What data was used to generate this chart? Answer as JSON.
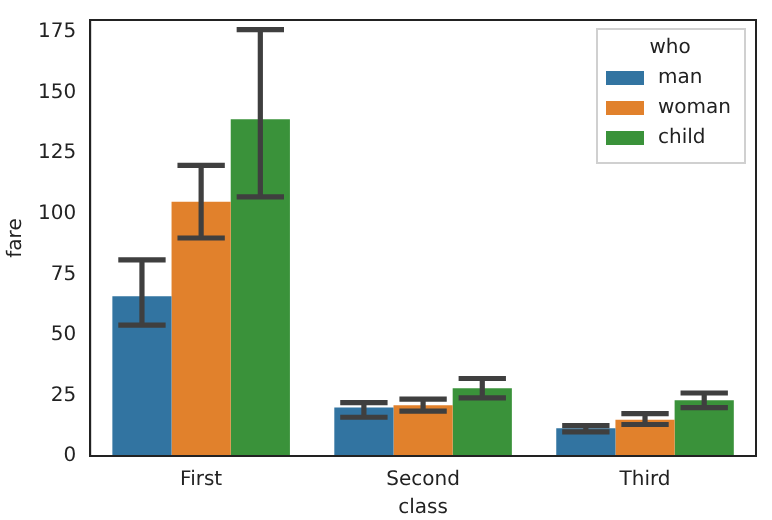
{
  "chart_data": {
    "type": "bar",
    "xlabel": "class",
    "ylabel": "fare",
    "legend_title": "who",
    "legend": "top right",
    "grid": false,
    "categories": [
      "First",
      "Second",
      "Third"
    ],
    "ylim": [
      0,
      180
    ],
    "yticks": [
      0,
      25,
      50,
      75,
      100,
      125,
      150,
      175
    ],
    "series": [
      {
        "name": "man",
        "color": "#3274a1",
        "values": [
          66,
          20,
          11.5
        ],
        "errors": [
          [
            54,
            81
          ],
          [
            16,
            22
          ],
          [
            10,
            12.5
          ]
        ]
      },
      {
        "name": "woman",
        "color": "#e1812c",
        "values": [
          105,
          21,
          15
        ],
        "errors": [
          [
            90,
            120
          ],
          [
            18.5,
            23.5
          ],
          [
            13,
            17.5
          ]
        ]
      },
      {
        "name": "child",
        "color": "#3a923a",
        "values": [
          139,
          28,
          23
        ],
        "errors": [
          [
            107,
            176
          ],
          [
            24,
            32
          ],
          [
            20,
            26
          ]
        ]
      }
    ]
  }
}
